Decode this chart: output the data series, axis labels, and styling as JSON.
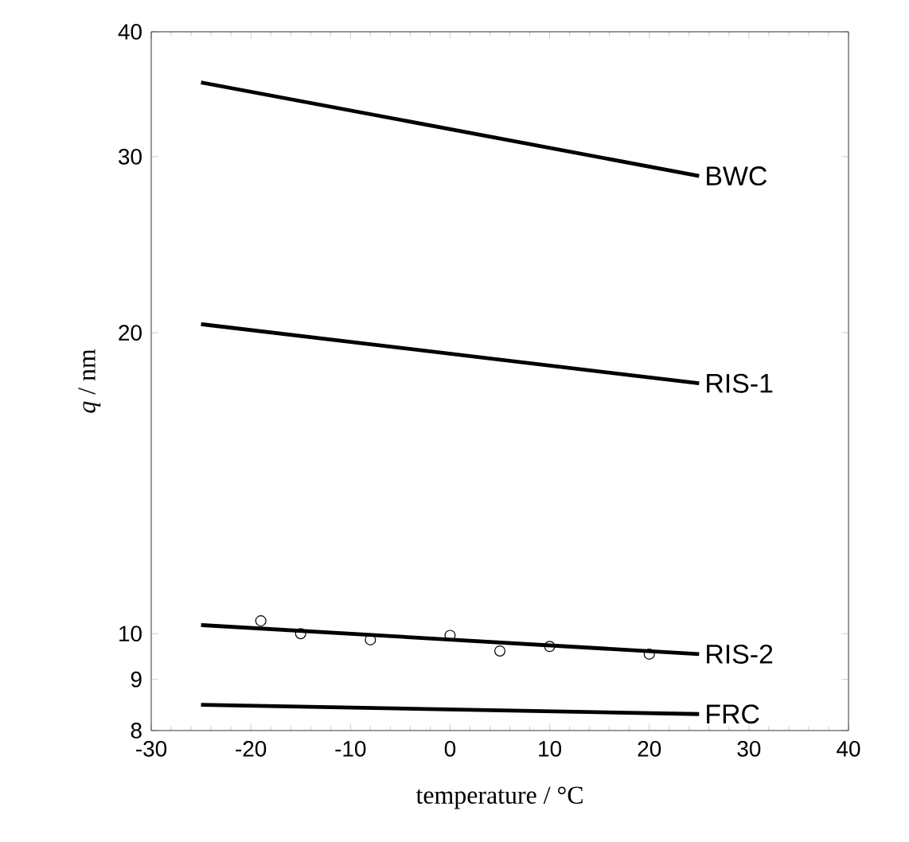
{
  "chart_data": {
    "type": "line",
    "xlabel": "temperature / °C",
    "ylabel": "*q* / nm",
    "log": "y",
    "xlim": [
      -30,
      40
    ],
    "xticks": [
      -30,
      -20,
      -10,
      0,
      10,
      20,
      30,
      40
    ],
    "ylim": [
      8,
      40
    ],
    "yticks": [
      8,
      9,
      10,
      20,
      30,
      40
    ],
    "grid": false,
    "marker": "none",
    "line_style": "solid",
    "series": [
      {
        "name": "BWC",
        "color": "#000000",
        "x": [
          -25,
          25
        ],
        "values": [
          35.6,
          28.7
        ]
      },
      {
        "name": "RIS-1",
        "color": "#000000",
        "x": [
          -25,
          25
        ],
        "values": [
          20.4,
          17.8
        ]
      },
      {
        "name": "RIS-2",
        "color": "#000000",
        "x": [
          -25,
          25
        ],
        "values": [
          10.2,
          9.54
        ]
      },
      {
        "name": "FRC",
        "color": "#000000",
        "x": [
          -25,
          25
        ],
        "values": [
          8.49,
          8.31
        ]
      },
      {
        "type": "scatter",
        "marker": "circle",
        "color": "#000000",
        "x": [
          -19,
          -15,
          -8,
          0,
          5,
          10,
          20
        ],
        "values": [
          10.3,
          10.0,
          9.86,
          9.96,
          9.61,
          9.71,
          9.54
        ]
      }
    ]
  }
}
